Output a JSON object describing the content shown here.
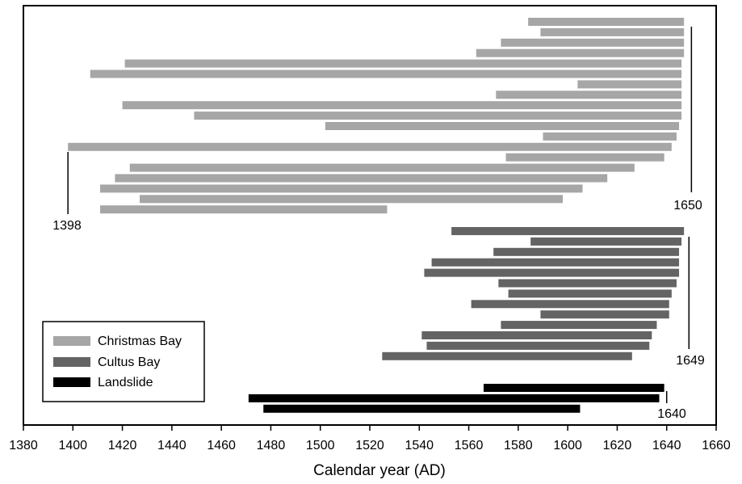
{
  "chart_data": {
    "type": "bar",
    "orientation": "horizontal-range",
    "xlabel": "Calendar year (AD)",
    "xlim": [
      1380,
      1660
    ],
    "xticks": [
      1380,
      1400,
      1420,
      1440,
      1460,
      1480,
      1500,
      1520,
      1540,
      1560,
      1580,
      1600,
      1620,
      1640,
      1660
    ],
    "grid": false,
    "legend_placement": "bottom-left",
    "series": [
      {
        "name": "Christmas Bay",
        "color": "#a6a6a6",
        "ranges": [
          [
            1584,
            1647
          ],
          [
            1589,
            1647
          ],
          [
            1573,
            1647
          ],
          [
            1563,
            1647
          ],
          [
            1421,
            1646
          ],
          [
            1407,
            1646
          ],
          [
            1604,
            1646
          ],
          [
            1571,
            1646
          ],
          [
            1420,
            1646
          ],
          [
            1449,
            1646
          ],
          [
            1502,
            1645
          ],
          [
            1590,
            1644
          ],
          [
            1398,
            1642
          ],
          [
            1575,
            1639
          ],
          [
            1423,
            1627
          ],
          [
            1417,
            1616
          ],
          [
            1411,
            1606
          ],
          [
            1427,
            1598
          ],
          [
            1411,
            1527
          ]
        ]
      },
      {
        "name": "Cultus Bay",
        "color": "#646464",
        "ranges": [
          [
            1553,
            1647
          ],
          [
            1585,
            1646
          ],
          [
            1570,
            1645
          ],
          [
            1545,
            1645
          ],
          [
            1542,
            1645
          ],
          [
            1572,
            1644
          ],
          [
            1576,
            1642
          ],
          [
            1561,
            1641
          ],
          [
            1589,
            1641
          ],
          [
            1573,
            1636
          ],
          [
            1541,
            1634
          ],
          [
            1543,
            1633
          ],
          [
            1525,
            1626
          ]
        ]
      },
      {
        "name": "Landslide",
        "color": "#000000",
        "ranges": [
          [
            1566,
            1639
          ],
          [
            1471,
            1637
          ],
          [
            1477,
            1605
          ]
        ]
      }
    ],
    "annotations": [
      {
        "label": "1650",
        "year": 1650
      },
      {
        "label": "1398",
        "year": 1398
      },
      {
        "label": "1649",
        "year": 1649
      },
      {
        "label": "1640",
        "year": 1640
      }
    ]
  }
}
